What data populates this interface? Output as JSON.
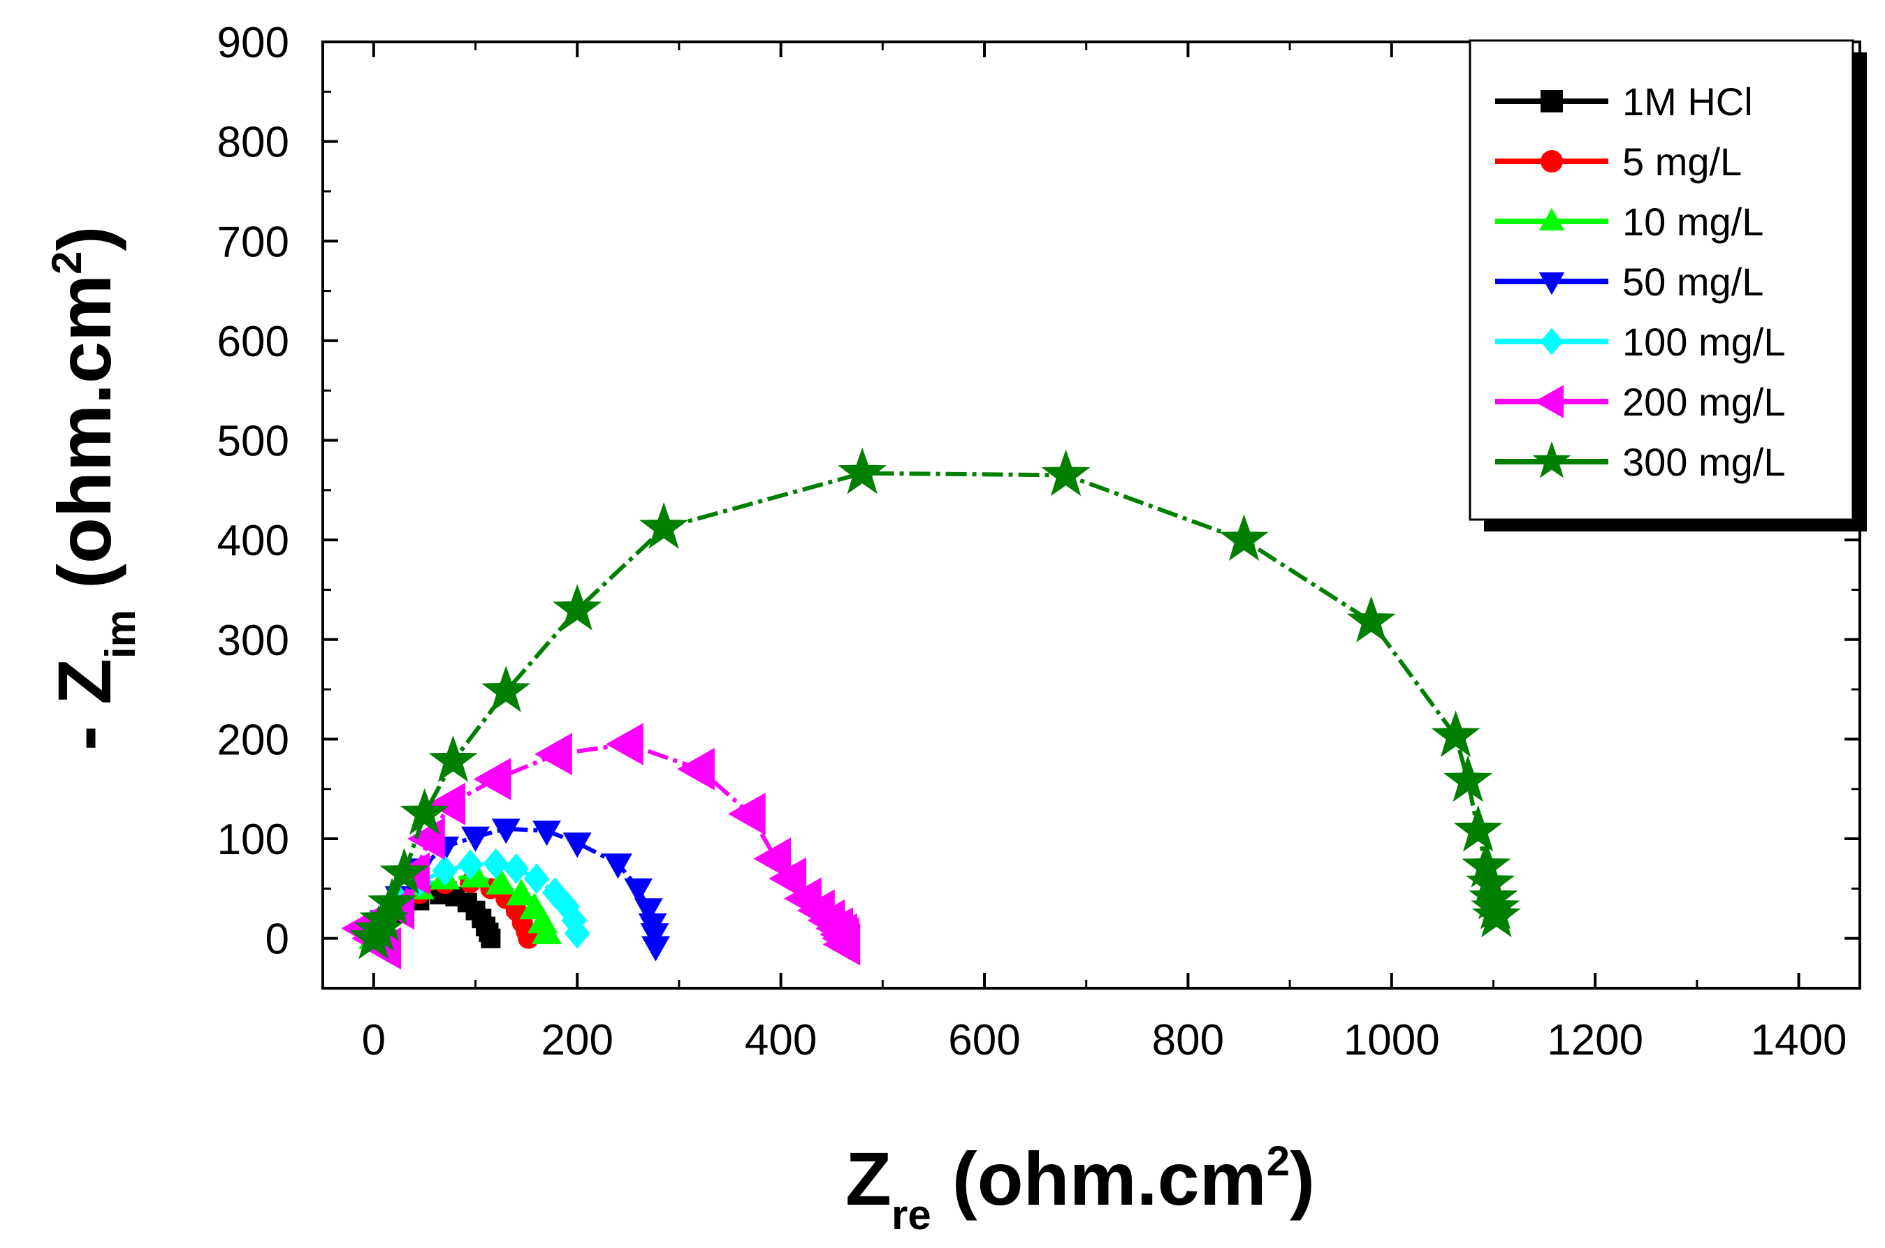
{
  "chart_data": {
    "type": "scatter",
    "xlabel": {
      "main": "Z",
      "sub": "re",
      "unit": " (ohm.cm",
      "sup": "2",
      "close": ")"
    },
    "ylabel": {
      "prefix": "- Z",
      "sub": "im",
      "unit": " (ohm.cm",
      "sup": "2",
      "close": ")"
    },
    "xlim": [
      -50,
      1460
    ],
    "ylim": [
      -50,
      900
    ],
    "xticks": [
      0,
      200,
      400,
      600,
      800,
      1000,
      1200,
      1400
    ],
    "yticks": [
      0,
      100,
      200,
      300,
      400,
      500,
      600,
      700,
      800,
      900
    ],
    "legend_position": "top-right",
    "series": [
      {
        "name": "1M HCl",
        "color": "#000000",
        "marker": "square",
        "x": [
          0,
          10,
          25,
          45,
          65,
          80,
          92,
          100,
          106,
          110,
          113,
          115
        ],
        "y": [
          0,
          10,
          25,
          38,
          44,
          42,
          36,
          28,
          20,
          12,
          6,
          0
        ]
      },
      {
        "name": "5 mg/L",
        "color": "#ff0000",
        "marker": "circle",
        "x": [
          0,
          10,
          25,
          45,
          70,
          95,
          115,
          130,
          140,
          146,
          150,
          152
        ],
        "y": [
          0,
          12,
          28,
          45,
          55,
          56,
          50,
          40,
          28,
          16,
          7,
          0
        ]
      },
      {
        "name": "10 mg/L",
        "color": "#00ff00",
        "marker": "triangle-up",
        "x": [
          0,
          10,
          25,
          45,
          70,
          100,
          125,
          145,
          158,
          166,
          170
        ],
        "y": [
          0,
          14,
          32,
          50,
          60,
          62,
          55,
          44,
          30,
          16,
          5
        ]
      },
      {
        "name": "50 mg/L",
        "color": "#0000ff",
        "marker": "triangle-down",
        "x": [
          0,
          10,
          25,
          45,
          70,
          100,
          130,
          170,
          200,
          240,
          260,
          270,
          274,
          276,
          277
        ],
        "y": [
          0,
          18,
          42,
          70,
          92,
          102,
          110,
          108,
          96,
          75,
          50,
          30,
          15,
          5,
          -8
        ]
      },
      {
        "name": "100 mg/L",
        "color": "#00ffff",
        "marker": "diamond",
        "x": [
          0,
          10,
          25,
          45,
          70,
          95,
          120,
          140,
          160,
          178,
          190,
          197,
          200
        ],
        "y": [
          0,
          16,
          38,
          57,
          68,
          74,
          75,
          70,
          60,
          46,
          32,
          18,
          5
        ]
      },
      {
        "name": "200 mg/L",
        "color": "#ff00ff",
        "marker": "triangle-left",
        "x": [
          -10,
          0,
          12,
          25,
          40,
          55,
          75,
          120,
          180,
          250,
          320,
          370,
          395,
          410,
          425,
          438,
          448,
          456,
          460,
          462,
          463
        ],
        "y": [
          10,
          0,
          -10,
          30,
          65,
          100,
          135,
          160,
          185,
          195,
          170,
          125,
          80,
          60,
          40,
          28,
          18,
          10,
          4,
          0,
          -6
        ]
      },
      {
        "name": "300 mg/L",
        "color": "#007f00",
        "marker": "star",
        "x": [
          0,
          5,
          10,
          18,
          30,
          50,
          78,
          130,
          200,
          285,
          480,
          680,
          855,
          980,
          1063,
          1075,
          1085,
          1093,
          1097,
          1100,
          1102,
          1103
        ],
        "y": [
          0,
          8,
          18,
          35,
          65,
          125,
          178,
          248,
          330,
          412,
          467,
          465,
          400,
          318,
          203,
          158,
          108,
          72,
          55,
          40,
          30,
          22
        ]
      }
    ]
  }
}
